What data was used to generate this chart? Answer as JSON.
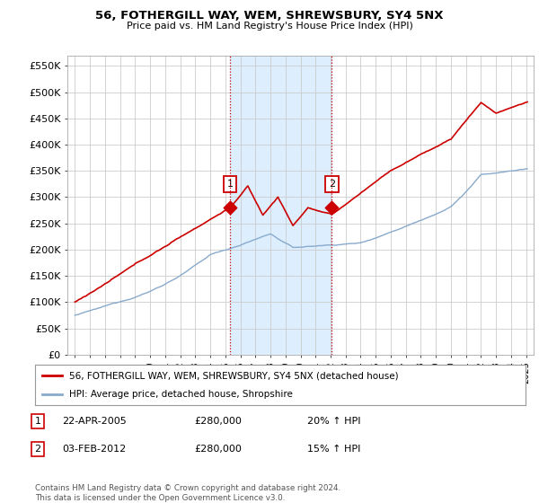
{
  "title": "56, FOTHERGILL WAY, WEM, SHREWSBURY, SY4 5NX",
  "subtitle": "Price paid vs. HM Land Registry's House Price Index (HPI)",
  "ylabel_ticks": [
    "£0",
    "£50K",
    "£100K",
    "£150K",
    "£200K",
    "£250K",
    "£300K",
    "£350K",
    "£400K",
    "£450K",
    "£500K",
    "£550K"
  ],
  "ytick_values": [
    0,
    50000,
    100000,
    150000,
    200000,
    250000,
    300000,
    350000,
    400000,
    450000,
    500000,
    550000
  ],
  "ylim": [
    0,
    570000
  ],
  "xlim_start": 1994.5,
  "xlim_end": 2025.5,
  "sale1_date": 2005.31,
  "sale1_price": 280000,
  "sale2_date": 2012.09,
  "sale2_price": 280000,
  "legend_line1": "56, FOTHERGILL WAY, WEM, SHREWSBURY, SY4 5NX (detached house)",
  "legend_line2": "HPI: Average price, detached house, Shropshire",
  "annotation1_date": "22-APR-2005",
  "annotation1_price": "£280,000",
  "annotation1_hpi": "20% ↑ HPI",
  "annotation2_date": "03-FEB-2012",
  "annotation2_price": "£280,000",
  "annotation2_hpi": "15% ↑ HPI",
  "footer": "Contains HM Land Registry data © Crown copyright and database right 2024.\nThis data is licensed under the Open Government Licence v3.0.",
  "red_color": "#cc0000",
  "blue_color": "#88aacc",
  "shade_color": "#ddeeff",
  "background_color": "#ffffff",
  "grid_color": "#cccccc"
}
